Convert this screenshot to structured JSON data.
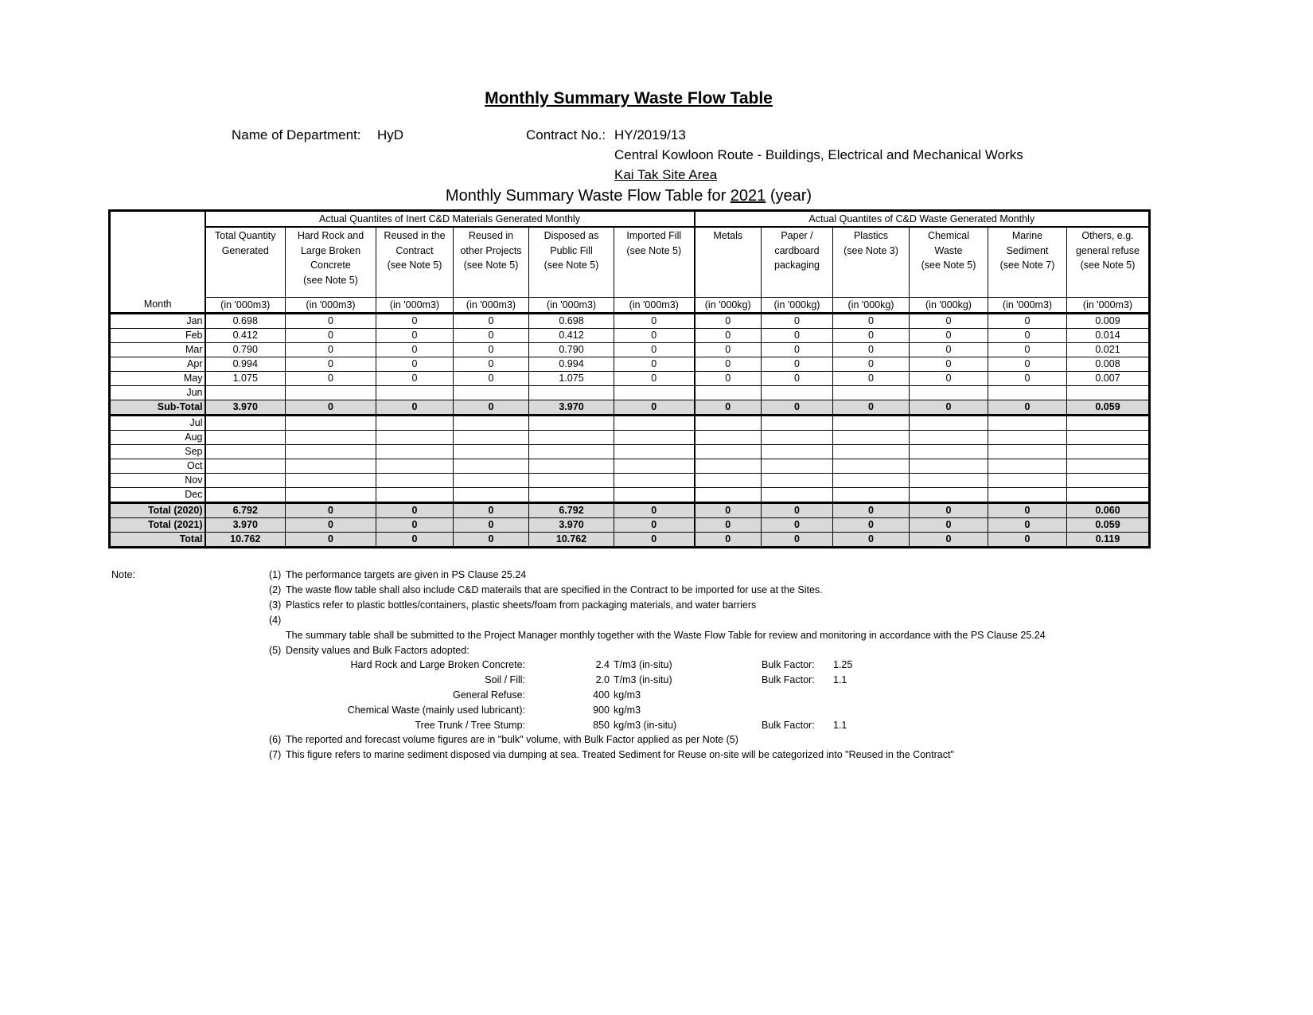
{
  "title": "Monthly Summary Waste Flow Table",
  "department_label": "Name of Department:",
  "department": "HyD",
  "contract_label": "Contract No.:",
  "contract_no": "HY/2019/13",
  "contract_name": "Central Kowloon Route - Buildings, Electrical and Mechanical Works",
  "site_area": "Kai Tak Site Area",
  "caption": {
    "prefix": "Monthly Summary Waste Flow Table for ",
    "year": "2021",
    "suffix": " (year)"
  },
  "table": {
    "group_inert": "Actual Quantites of Inert C&D Materials Generated Monthly",
    "group_waste": "Actual Quantites of C&D Waste Generated Monthly",
    "month_header": "Month",
    "columns": [
      {
        "label": "Total Quantity\nGenerated",
        "unit": "(in '000m3)"
      },
      {
        "label": "Hard Rock and\nLarge Broken\nConcrete\n(see Note 5)",
        "unit": "(in '000m3)"
      },
      {
        "label": "Reused in the\nContract\n(see Note 5)",
        "unit": "(in '000m3)"
      },
      {
        "label": "Reused in\nother Projects\n(see Note 5)",
        "unit": "(in '000m3)"
      },
      {
        "label": "Disposed as\nPublic Fill\n(see Note 5)",
        "unit": "(in '000m3)"
      },
      {
        "label": "Imported Fill\n(see Note 5)",
        "unit": "(in '000m3)"
      },
      {
        "label": "Metals",
        "unit": "(in '000kg)"
      },
      {
        "label": "Paper /\ncardboard\npackaging",
        "unit": "(in '000kg)"
      },
      {
        "label": "Plastics\n(see Note 3)",
        "unit": "(in '000kg)"
      },
      {
        "label": "Chemical\nWaste\n(see Note 5)",
        "unit": "(in '000kg)"
      },
      {
        "label": "Marine\nSediment\n(see Note 7)",
        "unit": "(in '000m3)"
      },
      {
        "label": "Others, e.g.\ngeneral refuse\n(see Note 5)",
        "unit": "(in '000m3)"
      }
    ],
    "rows": [
      {
        "month": "Jan",
        "type": "data",
        "values": [
          "0.698",
          "0",
          "0",
          "0",
          "0.698",
          "0",
          "0",
          "0",
          "0",
          "0",
          "0",
          "0.009"
        ]
      },
      {
        "month": "Feb",
        "type": "data",
        "values": [
          "0.412",
          "0",
          "0",
          "0",
          "0.412",
          "0",
          "0",
          "0",
          "0",
          "0",
          "0",
          "0.014"
        ]
      },
      {
        "month": "Mar",
        "type": "data",
        "values": [
          "0.790",
          "0",
          "0",
          "0",
          "0.790",
          "0",
          "0",
          "0",
          "0",
          "0",
          "0",
          "0.021"
        ]
      },
      {
        "month": "Apr",
        "type": "data",
        "values": [
          "0.994",
          "0",
          "0",
          "0",
          "0.994",
          "0",
          "0",
          "0",
          "0",
          "0",
          "0",
          "0.008"
        ]
      },
      {
        "month": "May",
        "type": "data",
        "values": [
          "1.075",
          "0",
          "0",
          "0",
          "1.075",
          "0",
          "0",
          "0",
          "0",
          "0",
          "0",
          "0.007"
        ]
      },
      {
        "month": "Jun",
        "type": "data",
        "values": [
          "",
          "",
          "",
          "",
          "",
          "",
          "",
          "",
          "",
          "",
          "",
          ""
        ]
      },
      {
        "month": "Sub-Total",
        "type": "subtotal",
        "values": [
          "3.970",
          "0",
          "0",
          "0",
          "3.970",
          "0",
          "0",
          "0",
          "0",
          "0",
          "0",
          "0.059"
        ]
      },
      {
        "month": "Jul",
        "type": "data",
        "values": [
          "",
          "",
          "",
          "",
          "",
          "",
          "",
          "",
          "",
          "",
          "",
          ""
        ]
      },
      {
        "month": "Aug",
        "type": "data",
        "values": [
          "",
          "",
          "",
          "",
          "",
          "",
          "",
          "",
          "",
          "",
          "",
          ""
        ]
      },
      {
        "month": "Sep",
        "type": "data",
        "values": [
          "",
          "",
          "",
          "",
          "",
          "",
          "",
          "",
          "",
          "",
          "",
          ""
        ]
      },
      {
        "month": "Oct",
        "type": "data",
        "values": [
          "",
          "",
          "",
          "",
          "",
          "",
          "",
          "",
          "",
          "",
          "",
          ""
        ]
      },
      {
        "month": "Nov",
        "type": "data",
        "values": [
          "",
          "",
          "",
          "",
          "",
          "",
          "",
          "",
          "",
          "",
          "",
          ""
        ]
      },
      {
        "month": "Dec",
        "type": "data",
        "values": [
          "",
          "",
          "",
          "",
          "",
          "",
          "",
          "",
          "",
          "",
          "",
          ""
        ]
      },
      {
        "month": "Total (2020)",
        "type": "total",
        "values": [
          "6.792",
          "0",
          "0",
          "0",
          "6.792",
          "0",
          "0",
          "0",
          "0",
          "0",
          "0",
          "0.060"
        ]
      },
      {
        "month": "Total (2021)",
        "type": "total",
        "values": [
          "3.970",
          "0",
          "0",
          "0",
          "3.970",
          "0",
          "0",
          "0",
          "0",
          "0",
          "0",
          "0.059"
        ]
      },
      {
        "month": "Total",
        "type": "total",
        "values": [
          "10.762",
          "0",
          "0",
          "0",
          "10.762",
          "0",
          "0",
          "0",
          "0",
          "0",
          "0",
          "0.119"
        ]
      }
    ]
  },
  "notes": {
    "label": "Note:",
    "n1": {
      "num": "(1)",
      "text": "The performance targets are given in PS Clause 25.24"
    },
    "n2": {
      "num": "(2)",
      "text": "The waste flow table shall also include C&D materails that are specified in the Contract to be imported for use at the Sites."
    },
    "n3": {
      "num": "(3)",
      "text": "Plastics refer to plastic bottles/containers, plastic sheets/foam from packaging materials, and water barriers"
    },
    "n4": {
      "num": "(4)",
      "text": "The summary table shall be submitted to the Project Manager monthly together with the Waste Flow Table for review and monitoring in accordance with the PS Clause 25.24"
    },
    "n5": {
      "num": "(5)",
      "text": "Density values and Bulk Factors adopted:"
    },
    "densities": [
      {
        "material": "Hard Rock and Large Broken Concrete:",
        "value": "2.4",
        "unit": "T/m3 (in-situ)",
        "bulk_label": "Bulk Factor:",
        "bulk": "1.25"
      },
      {
        "material": "Soil / Fill:",
        "value": "2.0",
        "unit": "T/m3 (in-situ)",
        "bulk_label": "Bulk Factor:",
        "bulk": "1.1"
      },
      {
        "material": "General Refuse:",
        "value": "400",
        "unit": "kg/m3"
      },
      {
        "material": "Chemical Waste (mainly used lubricant):",
        "value": "900",
        "unit": "kg/m3"
      },
      {
        "material": "Tree Trunk / Tree Stump:",
        "value": "850",
        "unit": "kg/m3 (in-situ)",
        "bulk_label": "Bulk Factor:",
        "bulk": "1.1"
      }
    ],
    "n6": {
      "num": "(6)",
      "text": "The reported and forecast volume figures are in \"bulk\" volume, with Bulk Factor applied as per Note (5)"
    },
    "n7": {
      "num": "(7)",
      "text": "This figure refers to marine sediment disposed via dumping at sea. Treated Sediment for Reuse on-site will be categorized into \"Reused in the Contract\""
    }
  }
}
